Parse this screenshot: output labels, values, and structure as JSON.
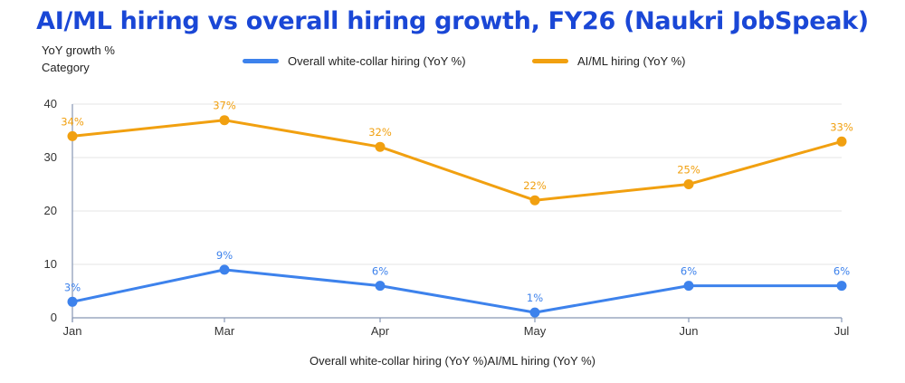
{
  "chart_data": {
    "type": "line",
    "title": "AI/ML hiring vs overall hiring growth, FY26 (Naukri JobSpeak)",
    "ylabel_lines": [
      "YoY growth %",
      "Category"
    ],
    "xlabel": "Overall white-collar hiring (YoY %)AI/ML hiring (YoY %)",
    "categories": [
      "Jan",
      "Mar",
      "Apr",
      "May",
      "Jun",
      "Jul"
    ],
    "ylim": [
      0,
      40
    ],
    "yticks": [
      0,
      10,
      20,
      30,
      40
    ],
    "grid": true,
    "legend_position": "top",
    "series": [
      {
        "name": "Overall white-collar hiring (YoY %)",
        "color": "#3d82ec",
        "values": [
          3,
          9,
          6,
          1,
          6,
          6
        ],
        "labels": [
          "3%",
          "9%",
          "6%",
          "1%",
          "6%",
          "6%"
        ]
      },
      {
        "name": "AI/ML hiring (YoY %)",
        "color": "#f1a010",
        "values": [
          34,
          37,
          32,
          22,
          25,
          33
        ],
        "labels": [
          "34%",
          "37%",
          "32%",
          "22%",
          "25%",
          "33%"
        ]
      }
    ]
  }
}
